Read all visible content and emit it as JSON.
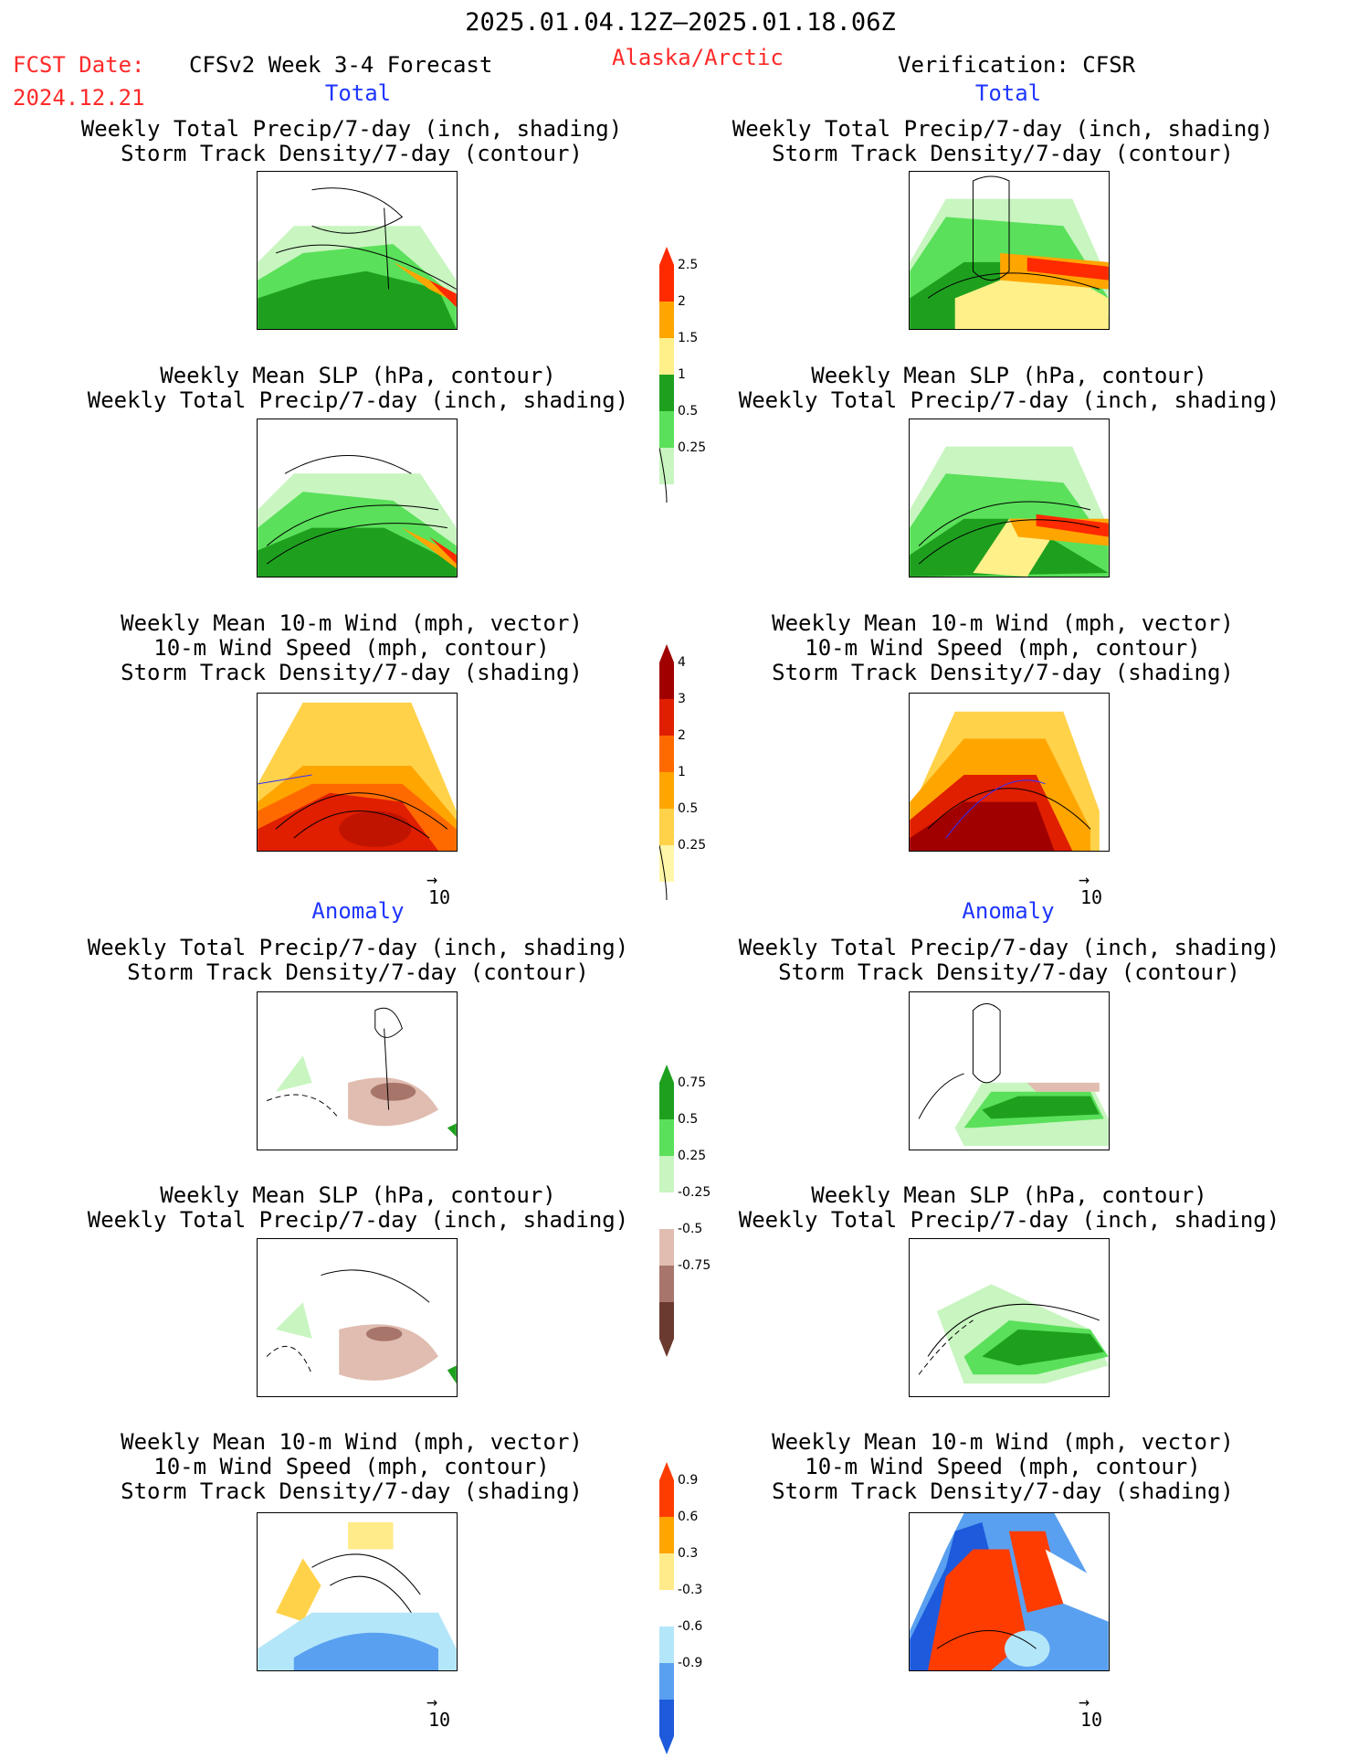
{
  "header": {
    "period": "2025.01.04.12Z–2025.01.18.06Z",
    "fcst_label": "FCST Date:",
    "fcst_date": "2024.12.21",
    "model": "CFSv2 Week 3-4 Forecast",
    "region": "Alaska/Arctic",
    "verification": "Verification: CFSR"
  },
  "sections": {
    "total": "Total",
    "anomaly": "Anomaly"
  },
  "titles": {
    "precip_storm": "Weekly Total Precip/7-day (inch, shading)\nStorm Track Density/7-day (contour)",
    "slp_precip": "Weekly Mean SLP (hPa, contour)\nWeekly Total Precip/7-day (inch, shading)",
    "wind_storm": "Weekly Mean 10-m Wind (mph, vector)\n10-m Wind Speed (mph, contour)\nStorm Track Density/7-day (shading)"
  },
  "vector_ref": "10",
  "colorbars": {
    "precip_total": {
      "colors": [
        "#c8f5c0",
        "#5ae05a",
        "#1ea01e",
        "#fff08a",
        "#ffa500",
        "#ff2a00"
      ],
      "labels": [
        "0.25",
        "0.5",
        "1",
        "1.5",
        "2",
        "2.5"
      ]
    },
    "storm_total": {
      "colors": [
        "#fff6a8",
        "#ffd24a",
        "#ffa500",
        "#ff6a00",
        "#e01e00",
        "#a00000"
      ],
      "labels": [
        "0.25",
        "0.5",
        "1",
        "2",
        "3",
        "4"
      ]
    },
    "precip_anom": {
      "colors": [
        "#6b3a2e",
        "#a8756a",
        "#e0bdb0",
        "#ffffff",
        "#c8f5c0",
        "#5ae05a",
        "#1ea01e"
      ],
      "labels": [
        "-0.75",
        "-0.5",
        "-0.25",
        "0.25",
        "0.5",
        "0.75"
      ]
    },
    "storm_anom": {
      "colors": [
        "#1e5adc",
        "#5aa0f0",
        "#b4e6fa",
        "#ffffff",
        "#ffeb8a",
        "#ffa500",
        "#ff3c00"
      ],
      "labels": [
        "-0.9",
        "-0.6",
        "-0.3",
        "0.3",
        "0.6",
        "0.9"
      ]
    }
  }
}
